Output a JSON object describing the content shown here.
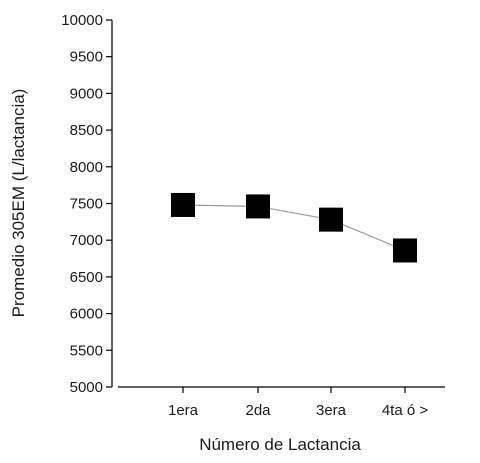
{
  "chart_data": {
    "type": "line",
    "title": "",
    "xlabel": "Número de Lactancia",
    "ylabel": "Promedio 305EM (L/lactancia)",
    "categories": [
      "1era",
      "2da",
      "3era",
      "4ta ó >"
    ],
    "series": [
      {
        "values": [
          7480,
          7460,
          7280,
          6860
        ]
      }
    ],
    "ylim": [
      5000,
      10000
    ],
    "yticks": [
      5000,
      5500,
      6000,
      6500,
      7000,
      7500,
      8000,
      8500,
      9000,
      9500,
      10000
    ],
    "grid": false,
    "legend": "none",
    "marker": "square",
    "colors": {
      "marker": "#000000",
      "line": "#9a9a9a",
      "axis": "#000000"
    }
  }
}
